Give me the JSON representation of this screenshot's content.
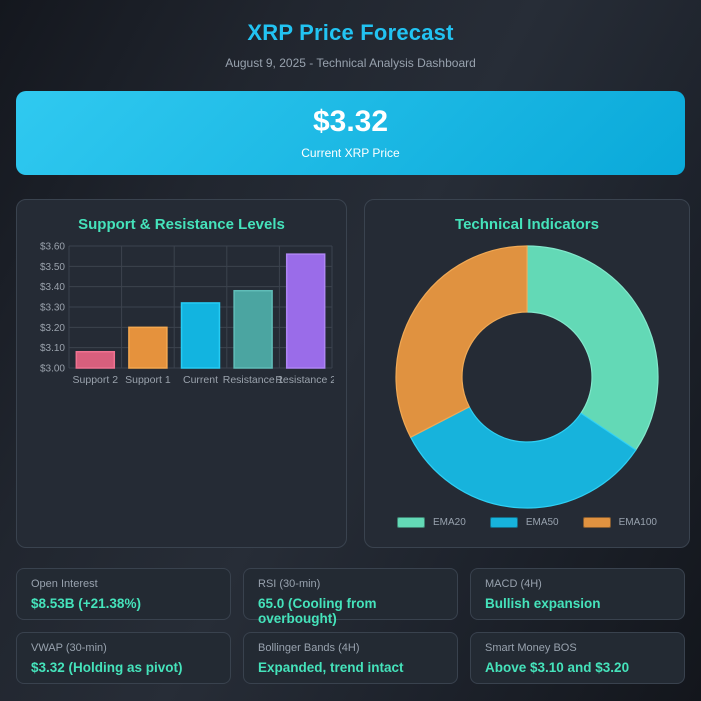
{
  "header": {
    "title": "XRP Price Forecast",
    "subtitle": "August 9, 2025 - Technical Analysis Dashboard"
  },
  "price_banner": {
    "price": "$3.32",
    "caption": "Current XRP Price",
    "gradient_start": "#30c9f0",
    "gradient_end": "#0aa9d9"
  },
  "chart_data": [
    {
      "type": "bar",
      "title": "Support & Resistance Levels",
      "categories": [
        "Support 2",
        "Support 1",
        "Current",
        "Resistance 1",
        "Resistance 2"
      ],
      "values": [
        3.08,
        3.2,
        3.32,
        3.38,
        3.56
      ],
      "bar_colors": [
        "#d85f7d",
        "#e5923d",
        "#12b4e0",
        "#4ba5a1",
        "#9a6ce9"
      ],
      "bar_border_colors": [
        "#ef7291",
        "#f4a74f",
        "#26ccf4",
        "#60bdb8",
        "#ae85f4"
      ],
      "ylim": [
        3.0,
        3.6
      ],
      "y_tick_step": 0.1,
      "y_tick_prefix": "$",
      "grid": true,
      "xlabel": "",
      "ylabel": ""
    },
    {
      "type": "pie",
      "subtype": "donut",
      "title": "Technical Indicators",
      "labels": [
        "EMA20",
        "EMA50",
        "EMA100"
      ],
      "values_pct": [
        34.4,
        33.0,
        32.6
      ],
      "colors": [
        "#63d9b6",
        "#17b3dc",
        "#e09240"
      ],
      "border_colors": [
        "#83e8cc",
        "#2fd0f4",
        "#f0a955"
      ],
      "legend_position": "bottom"
    }
  ],
  "stats": [
    {
      "label": "Open Interest",
      "value": "$8.53B (+21.38%)"
    },
    {
      "label": "RSI (30-min)",
      "value": "65.0 (Cooling from overbought)"
    },
    {
      "label": "MACD (4H)",
      "value": "Bullish expansion"
    },
    {
      "label": "VWAP (30-min)",
      "value": "$3.32 (Holding as pivot)"
    },
    {
      "label": "Bollinger Bands (4H)",
      "value": "Expanded, trend intact"
    },
    {
      "label": "Smart Money BOS",
      "value": "Above $3.10 and $3.20"
    }
  ],
  "theme": {
    "accent_cyan": "#22c3f2",
    "accent_mint": "#45e3bb",
    "text_muted": "#98a2ae",
    "tick_text": "#9aa2ac",
    "grid_line": "#3c434e",
    "panel_bg": "#252b35",
    "panel_border": "#3a434f",
    "card_bg": "#232a33",
    "card_border": "#39424e"
  }
}
